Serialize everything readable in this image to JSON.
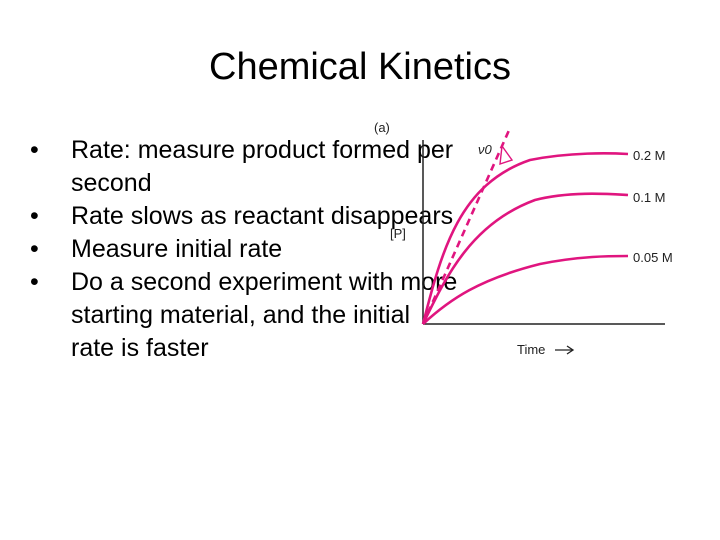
{
  "slide": {
    "title": "Chemical Kinetics",
    "bullets": [
      "Rate:  measure product formed per second",
      "Rate slows as reactant disappears",
      "Measure initial rate",
      "Do a second experiment with more starting material, and the initial rate is faster"
    ]
  },
  "figure": {
    "panel_label": "(a)",
    "y_axis_label": "[P]",
    "x_axis_label": "Time",
    "tangent_label": "ν0",
    "curve_color": "#e0157f",
    "curves": [
      {
        "label": "0.2 M",
        "plateau": 0.2
      },
      {
        "label": "0.1 M",
        "plateau": 0.1
      },
      {
        "label": "0.05 M",
        "plateau": 0.05
      }
    ]
  }
}
